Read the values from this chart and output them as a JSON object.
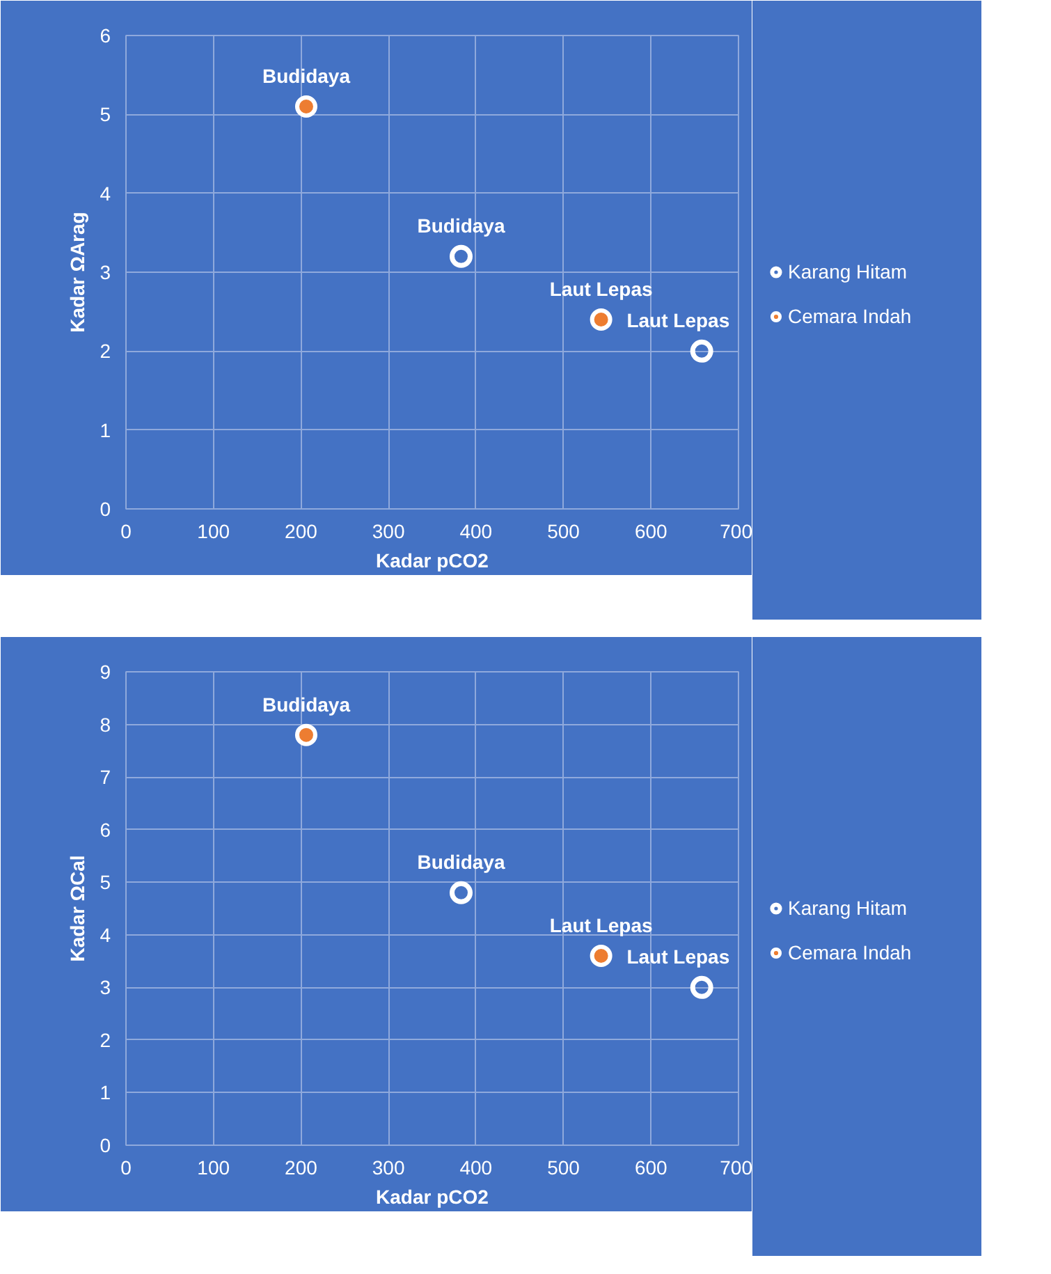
{
  "chart_data": [
    {
      "type": "scatter",
      "xlabel": "Kadar pCO2",
      "ylabel": "Kadar ΩArag",
      "xlim": [
        0,
        700
      ],
      "xticks": [
        0,
        100,
        200,
        300,
        400,
        500,
        600,
        700
      ],
      "ylim": [
        0,
        6
      ],
      "yticks": [
        0,
        1,
        2,
        3,
        4,
        5,
        6
      ],
      "grid": true,
      "legend": "right",
      "marker": "circle",
      "series": [
        {
          "name": "Karang Hitam",
          "color": "#ffffff",
          "x": [
            383,
            658
          ],
          "values": [
            3.2,
            2.0
          ]
        },
        {
          "name": "Cemara Indah",
          "color": "#ed7d31",
          "x": [
            206,
            543
          ],
          "values": [
            5.1,
            2.4
          ]
        }
      ],
      "annotations": [
        {
          "text": "Budidaya",
          "x": 383,
          "y": 3.2
        },
        {
          "text": "Laut Lepas",
          "x": 658,
          "y": 2.0
        },
        {
          "text": "Budidaya",
          "x": 206,
          "y": 5.1
        },
        {
          "text": "Laut Lepas",
          "x": 543,
          "y": 2.4
        }
      ]
    },
    {
      "type": "scatter",
      "xlabel": "Kadar pCO2",
      "ylabel": "Kadar ΩCal",
      "xlim": [
        0,
        700
      ],
      "xticks": [
        0,
        100,
        200,
        300,
        400,
        500,
        600,
        700
      ],
      "ylim": [
        0,
        9
      ],
      "yticks": [
        0,
        1,
        2,
        3,
        4,
        5,
        6,
        7,
        8,
        9
      ],
      "grid": true,
      "legend": "right",
      "marker": "circle",
      "series": [
        {
          "name": "Karang Hitam",
          "color": "#ffffff",
          "x": [
            383,
            658
          ],
          "values": [
            4.8,
            3.0
          ]
        },
        {
          "name": "Cemara Indah",
          "color": "#ed7d31",
          "x": [
            206,
            543
          ],
          "values": [
            7.8,
            3.6
          ]
        }
      ],
      "annotations": [
        {
          "text": "Budidaya",
          "x": 383,
          "y": 4.8
        },
        {
          "text": "Laut Lepas",
          "x": 658,
          "y": 3.0
        },
        {
          "text": "Budidaya",
          "x": 206,
          "y": 7.8
        },
        {
          "text": "Laut Lepas",
          "x": 543,
          "y": 3.6
        }
      ]
    }
  ]
}
